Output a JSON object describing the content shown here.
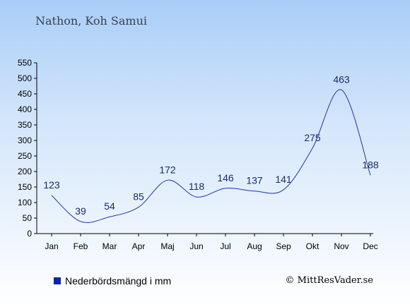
{
  "title": "Nathon, Koh Samui",
  "chart_data": {
    "type": "line",
    "categories": [
      "Jan",
      "Feb",
      "Mar",
      "Apr",
      "Maj",
      "Jun",
      "Jul",
      "Aug",
      "Sep",
      "Okt",
      "Nov",
      "Dec"
    ],
    "values": [
      123,
      39,
      54,
      85,
      172,
      118,
      146,
      137,
      141,
      275,
      463,
      188
    ],
    "ylim": [
      0,
      550
    ],
    "yticks": [
      0,
      50,
      100,
      150,
      200,
      250,
      300,
      350,
      400,
      450,
      500,
      550
    ],
    "grid": false
  },
  "legend": {
    "label": "Nederbördsmängd i mm"
  },
  "copyright": "© MittResVader.se",
  "colors": {
    "line": "#2233aa",
    "legend_swatch": "#1122aa",
    "axis": "#000000"
  }
}
